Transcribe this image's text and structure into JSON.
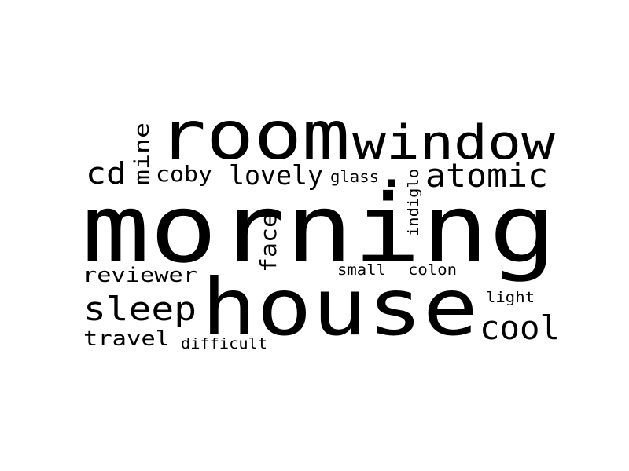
{
  "text_color": "#000000",
  "background_color": "#ffffff",
  "words": [
    {
      "text": "morning"
    },
    {
      "text": "house"
    },
    {
      "text": "room"
    },
    {
      "text": "window"
    },
    {
      "text": "atomic"
    },
    {
      "text": "sleep"
    },
    {
      "text": "cool"
    },
    {
      "text": "cd"
    },
    {
      "text": "lovely"
    },
    {
      "text": "coby"
    },
    {
      "text": "reviewer"
    },
    {
      "text": "travel"
    },
    {
      "text": "face"
    },
    {
      "text": "mine"
    },
    {
      "text": "glass"
    },
    {
      "text": "indiglo"
    },
    {
      "text": "small"
    },
    {
      "text": "colon"
    },
    {
      "text": "light"
    },
    {
      "text": "difficult"
    },
    {
      "text": "."
    }
  ]
}
